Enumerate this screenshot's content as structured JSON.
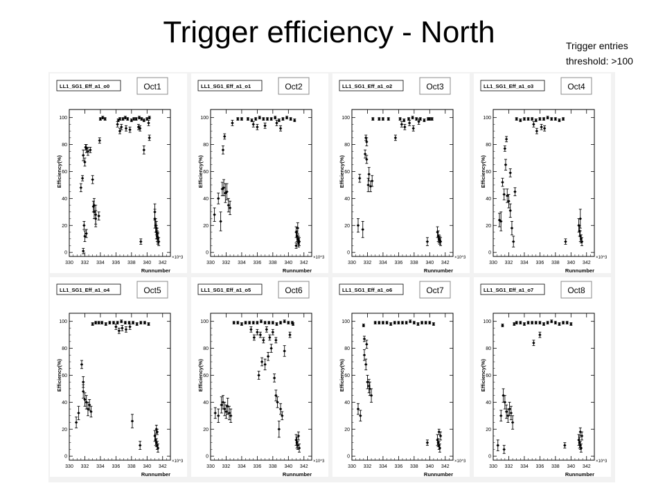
{
  "slide": {
    "title": "Trigger efficiency - North",
    "note_line1": "Trigger entries",
    "note_line2": "threshold: >100"
  },
  "chart_data": [
    {
      "type": "scatter",
      "title": "LL1_SG1_Eff_a1_o0",
      "tag": "Oct1",
      "xlabel": "Runnumber",
      "ylabel": "Efficiency(%)",
      "x_multiplier": "×10^3",
      "xlim": [
        330,
        343
      ],
      "ylim": [
        -3,
        106
      ],
      "xticks": [
        330,
        332,
        334,
        336,
        338,
        340,
        342
      ],
      "yticks": [
        0,
        20,
        40,
        60,
        80,
        100
      ],
      "x": [
        331.5,
        331.7,
        331.8,
        332.0,
        332.1,
        332.2,
        332.4,
        332.7,
        333.0,
        333.2,
        333.4,
        333.8,
        333.1,
        333.2,
        333.4,
        333.9,
        331.9,
        332.0,
        332.2,
        331.8,
        334.0,
        334.3,
        334.6,
        336.3,
        336.5,
        336.9,
        337.2,
        337.5,
        338.0,
        338.3,
        338.6,
        339.0,
        339.3,
        339.6,
        340.0,
        340.3,
        336.2,
        336.7,
        337.3,
        336.5,
        337.8,
        338.9,
        339.1,
        341.0,
        341.1,
        341.2,
        341.3,
        341.4,
        341.5,
        341.0,
        341.2,
        341.3,
        341.4,
        339.2,
        340.3,
        339.6,
        340.2
      ],
      "y": [
        48,
        55,
        72,
        67,
        78,
        77,
        75,
        76,
        54,
        35,
        28,
        27,
        34,
        30,
        25,
        83,
        20,
        12,
        14,
        1,
        99,
        100,
        99,
        98,
        99,
        99,
        100,
        99,
        98,
        99,
        99,
        100,
        99,
        98,
        99,
        100,
        95,
        93,
        92,
        90,
        91,
        93,
        92,
        30,
        20,
        15,
        12,
        10,
        8,
        25,
        18,
        14,
        11,
        8,
        85,
        76,
        96
      ],
      "err": [
        3,
        2,
        4,
        3,
        2,
        3,
        3,
        2,
        3,
        5,
        7,
        3,
        4,
        5,
        6,
        2,
        3,
        4,
        3,
        2,
        1,
        1,
        1,
        1,
        1,
        1,
        1,
        1,
        1,
        1,
        1,
        1,
        1,
        1,
        1,
        1,
        2,
        2,
        2,
        2,
        2,
        2,
        2,
        6,
        5,
        5,
        4,
        4,
        3,
        7,
        5,
        4,
        4,
        2,
        2,
        3,
        2
      ]
    },
    {
      "type": "scatter",
      "title": "LL1_SG1_Eff_a1_o1",
      "tag": "Oct2",
      "xlabel": "Runnumber",
      "ylabel": "Efficiency(%)",
      "x_multiplier": "×10^3",
      "xlim": [
        330,
        343
      ],
      "ylim": [
        -3,
        106
      ],
      "xticks": [
        330,
        332,
        334,
        336,
        338,
        340,
        342
      ],
      "yticks": [
        0,
        20,
        40,
        60,
        80,
        100
      ],
      "x": [
        330.5,
        331.0,
        331.3,
        331.5,
        331.7,
        331.9,
        332.1,
        332.3,
        332.5,
        331.6,
        331.8,
        332.8,
        333.5,
        334.0,
        334.8,
        335.3,
        335.8,
        336.3,
        336.8,
        337.3,
        337.8,
        338.3,
        338.8,
        339.3,
        339.8,
        340.3,
        340.8,
        335.5,
        336.0,
        337.0,
        338.5,
        339.0,
        341.0,
        341.1,
        341.2,
        341.3,
        341.4,
        341.3,
        341.0,
        341.2
      ],
      "y": [
        28,
        40,
        23,
        47,
        48,
        44,
        45,
        35,
        33,
        76,
        86,
        96,
        99,
        99,
        99,
        98,
        99,
        100,
        99,
        99,
        99,
        100,
        98,
        99,
        100,
        99,
        98,
        95,
        93,
        94,
        96,
        92,
        15,
        12,
        10,
        9,
        8,
        7,
        5,
        18
      ],
      "err": [
        5,
        4,
        7,
        5,
        6,
        7,
        6,
        5,
        5,
        3,
        2,
        2,
        1,
        1,
        1,
        1,
        1,
        1,
        1,
        1,
        1,
        1,
        1,
        1,
        1,
        1,
        1,
        2,
        2,
        2,
        2,
        2,
        4,
        4,
        3,
        3,
        3,
        3,
        2,
        4
      ]
    },
    {
      "type": "scatter",
      "title": "LL1_SG1_Eff_a1_o2",
      "tag": "Oct3",
      "xlabel": "Runnumber",
      "ylabel": "Efficiency(%)",
      "x_multiplier": "×10^3",
      "xlim": [
        330,
        343
      ],
      "ylim": [
        -3,
        106
      ],
      "xticks": [
        330,
        332,
        334,
        336,
        338,
        340,
        342
      ],
      "yticks": [
        0,
        20,
        40,
        60,
        80,
        100
      ],
      "x": [
        330.8,
        331.0,
        331.4,
        331.7,
        331.9,
        332.1,
        332.2,
        332.4,
        332.6,
        331.8,
        331.9,
        332.7,
        333.5,
        334.0,
        334.7,
        335.6,
        336.2,
        336.7,
        337.3,
        337.8,
        338.3,
        338.8,
        339.3,
        339.8,
        340.3,
        336.4,
        336.8,
        337.4,
        337.9,
        338.6,
        339.7,
        340.0,
        341.0,
        341.1,
        341.2,
        341.3,
        341.4
      ],
      "y": [
        20,
        55,
        17,
        73,
        69,
        50,
        58,
        49,
        53,
        85,
        82,
        99,
        99,
        99,
        99,
        85,
        99,
        98,
        99,
        100,
        99,
        99,
        98,
        99,
        99,
        95,
        93,
        96,
        92,
        97,
        8,
        99,
        15,
        12,
        10,
        9,
        8
      ],
      "err": [
        5,
        3,
        6,
        3,
        3,
        5,
        5,
        4,
        4,
        2,
        3,
        1,
        1,
        1,
        1,
        2,
        1,
        1,
        1,
        1,
        1,
        1,
        1,
        1,
        1,
        2,
        2,
        2,
        2,
        2,
        3,
        1,
        4,
        4,
        3,
        3,
        3
      ]
    },
    {
      "type": "scatter",
      "title": "LL1_SG1_Eff_a1_o3",
      "tag": "Oct4",
      "xlabel": "Runnumber",
      "ylabel": "Efficiency(%)",
      "x_multiplier": "×10^3",
      "xlim": [
        330,
        343
      ],
      "ylim": [
        -3,
        106
      ],
      "xticks": [
        330,
        332,
        334,
        336,
        338,
        340,
        342
      ],
      "yticks": [
        0,
        20,
        40,
        60,
        80,
        100
      ],
      "x": [
        330.8,
        331.0,
        331.2,
        331.4,
        331.6,
        331.8,
        332.0,
        332.2,
        332.4,
        332.6,
        332.8,
        331.5,
        331.7,
        332.2,
        333.0,
        333.5,
        334.0,
        334.5,
        335.0,
        335.5,
        336.0,
        336.5,
        337.0,
        337.5,
        338.0,
        338.5,
        339.0,
        335.2,
        335.6,
        336.2,
        336.6,
        339.3,
        341.0,
        341.1,
        341.2,
        341.3,
        341.4,
        341.2
      ],
      "y": [
        24,
        23,
        52,
        43,
        65,
        42,
        38,
        31,
        18,
        8,
        45,
        77,
        84,
        59,
        99,
        98,
        99,
        99,
        99,
        98,
        99,
        99,
        100,
        99,
        99,
        98,
        99,
        95,
        90,
        93,
        92,
        8,
        20,
        16,
        12,
        10,
        8,
        25
      ],
      "err": [
        5,
        7,
        3,
        4,
        4,
        5,
        5,
        5,
        5,
        4,
        3,
        2,
        2,
        3,
        1,
        1,
        1,
        1,
        1,
        1,
        1,
        1,
        1,
        1,
        1,
        1,
        1,
        2,
        2,
        2,
        2,
        2,
        5,
        4,
        4,
        3,
        3,
        7
      ]
    },
    {
      "type": "scatter",
      "title": "LL1_SG1_Eff_a1_o4",
      "tag": "Oct5",
      "xlabel": "Runnumber",
      "ylabel": "Efficiency(%)",
      "x_multiplier": "×10^3",
      "xlim": [
        330,
        343
      ],
      "ylim": [
        -3,
        106
      ],
      "xticks": [
        330,
        332,
        334,
        336,
        338,
        340,
        342
      ],
      "yticks": [
        0,
        20,
        40,
        60,
        80,
        100
      ],
      "x": [
        330.9,
        331.2,
        331.6,
        331.8,
        332.0,
        332.2,
        332.4,
        332.6,
        332.8,
        331.8,
        333.0,
        333.4,
        333.8,
        334.2,
        334.7,
        335.2,
        335.7,
        336.2,
        336.7,
        337.2,
        337.7,
        338.2,
        338.7,
        339.2,
        339.7,
        340.2,
        336.0,
        336.4,
        336.8,
        337.3,
        337.8,
        338.1,
        339.1,
        341.0,
        341.1,
        341.2,
        341.3,
        341.4,
        341.2,
        341.3
      ],
      "y": [
        25,
        32,
        68,
        55,
        42,
        40,
        35,
        38,
        33,
        48,
        98,
        99,
        99,
        99,
        98,
        99,
        99,
        99,
        100,
        99,
        99,
        99,
        98,
        99,
        99,
        98,
        96,
        93,
        95,
        94,
        96,
        26,
        8,
        15,
        12,
        10,
        8,
        6,
        20,
        18
      ],
      "err": [
        4,
        5,
        3,
        4,
        5,
        5,
        5,
        4,
        4,
        5,
        1,
        1,
        1,
        1,
        1,
        1,
        1,
        1,
        1,
        1,
        1,
        1,
        1,
        1,
        1,
        1,
        2,
        2,
        2,
        2,
        2,
        5,
        3,
        4,
        4,
        3,
        3,
        3,
        3,
        2
      ]
    },
    {
      "type": "scatter",
      "title": "LL1_SG1_Eff_a1_o5",
      "tag": "Oct6",
      "xlabel": "Runnumber",
      "ylabel": "Efficiency(%)",
      "x_multiplier": "×10^3",
      "xlim": [
        330,
        343
      ],
      "ylim": [
        -3,
        106
      ],
      "xticks": [
        330,
        332,
        334,
        336,
        338,
        340,
        342
      ],
      "yticks": [
        0,
        20,
        40,
        60,
        80,
        100
      ],
      "x": [
        330.6,
        331.0,
        331.4,
        331.6,
        331.8,
        332.0,
        332.2,
        332.4,
        332.6,
        333.0,
        333.5,
        334.0,
        334.5,
        335.0,
        335.5,
        336.0,
        336.5,
        337.0,
        337.5,
        338.0,
        338.5,
        339.0,
        339.5,
        340.0,
        340.5,
        335.2,
        335.6,
        336.0,
        336.4,
        336.8,
        337.2,
        337.6,
        338.0,
        338.4,
        336.2,
        336.6,
        337.0,
        337.4,
        337.8,
        338.2,
        338.4,
        338.6,
        338.8,
        339.0,
        339.2,
        339.5,
        340.2,
        340.6,
        341.0,
        341.1,
        341.2,
        341.3,
        341.4
      ],
      "y": [
        32,
        30,
        38,
        40,
        35,
        33,
        37,
        32,
        30,
        99,
        99,
        98,
        99,
        99,
        99,
        99,
        100,
        99,
        99,
        99,
        98,
        99,
        100,
        99,
        99,
        94,
        88,
        92,
        90,
        86,
        94,
        88,
        92,
        86,
        60,
        70,
        68,
        74,
        80,
        58,
        45,
        40,
        20,
        35,
        30,
        78,
        90,
        98,
        12,
        10,
        8,
        15,
        6
      ],
      "err": [
        4,
        5,
        6,
        5,
        5,
        5,
        6,
        5,
        5,
        1,
        1,
        1,
        1,
        1,
        1,
        1,
        1,
        1,
        1,
        1,
        1,
        1,
        1,
        1,
        1,
        2,
        2,
        2,
        2,
        2,
        2,
        2,
        2,
        2,
        3,
        3,
        4,
        3,
        3,
        3,
        4,
        4,
        6,
        4,
        3,
        4,
        2,
        1,
        4,
        4,
        3,
        3,
        3
      ]
    },
    {
      "type": "scatter",
      "title": "LL1_SG1_Eff_a1_o6",
      "tag": "Oct7",
      "xlabel": "Runnumber",
      "ylabel": "Efficiency(%)",
      "x_multiplier": "×10^3",
      "xlim": [
        330,
        343
      ],
      "ylim": [
        -3,
        106
      ],
      "xticks": [
        330,
        332,
        334,
        336,
        338,
        340,
        342
      ],
      "yticks": [
        0,
        20,
        40,
        60,
        80,
        100
      ],
      "x": [
        330.8,
        331.1,
        331.6,
        331.8,
        332.0,
        332.2,
        332.3,
        332.5,
        331.9,
        331.6,
        333.0,
        333.5,
        334.0,
        334.5,
        335.0,
        335.5,
        336.0,
        336.5,
        337.0,
        337.5,
        338.0,
        338.5,
        339.0,
        339.5,
        340.0,
        340.5,
        331.5,
        339.7,
        341.0,
        341.1,
        341.2,
        341.3,
        341.4,
        341.2
      ],
      "y": [
        35,
        30,
        75,
        68,
        55,
        52,
        50,
        45,
        83,
        87,
        99,
        99,
        99,
        99,
        98,
        99,
        99,
        99,
        99,
        100,
        99,
        98,
        99,
        99,
        99,
        98,
        97,
        10,
        12,
        10,
        8,
        6,
        15,
        18
      ],
      "err": [
        4,
        4,
        4,
        4,
        5,
        5,
        5,
        5,
        3,
        2,
        1,
        1,
        1,
        1,
        1,
        1,
        1,
        1,
        1,
        1,
        1,
        1,
        1,
        1,
        1,
        1,
        1,
        2,
        4,
        3,
        3,
        3,
        3,
        2
      ]
    },
    {
      "type": "scatter",
      "title": "LL1_SG1_Eff_a1_o7",
      "tag": "Oct8",
      "xlabel": "Runnumber",
      "ylabel": "Efficiency(%)",
      "x_multiplier": "×10^3",
      "xlim": [
        330,
        343
      ],
      "ylim": [
        -3,
        106
      ],
      "xticks": [
        330,
        332,
        334,
        336,
        338,
        340,
        342
      ],
      "yticks": [
        0,
        20,
        40,
        60,
        80,
        100
      ],
      "x": [
        330.6,
        331.0,
        331.3,
        331.5,
        331.7,
        331.9,
        332.1,
        332.3,
        332.5,
        331.4,
        332.7,
        331.2,
        333.0,
        333.5,
        334.0,
        334.5,
        335.0,
        335.5,
        336.0,
        336.5,
        337.0,
        337.5,
        338.0,
        338.5,
        339.0,
        339.5,
        340.0,
        335.2,
        336.0,
        339.2,
        341.0,
        341.1,
        341.2,
        341.3,
        341.4,
        341.2
      ],
      "y": [
        8,
        30,
        45,
        40,
        33,
        30,
        35,
        32,
        25,
        5,
        98,
        97,
        99,
        99,
        98,
        99,
        99,
        99,
        99,
        98,
        99,
        100,
        99,
        98,
        99,
        99,
        98,
        84,
        90,
        8,
        12,
        10,
        8,
        6,
        15,
        18
      ],
      "err": [
        4,
        4,
        5,
        5,
        5,
        5,
        5,
        5,
        5,
        3,
        1,
        1,
        1,
        1,
        1,
        1,
        1,
        1,
        1,
        1,
        1,
        1,
        1,
        1,
        1,
        1,
        1,
        2,
        2,
        2,
        4,
        4,
        3,
        3,
        3,
        3
      ]
    }
  ]
}
